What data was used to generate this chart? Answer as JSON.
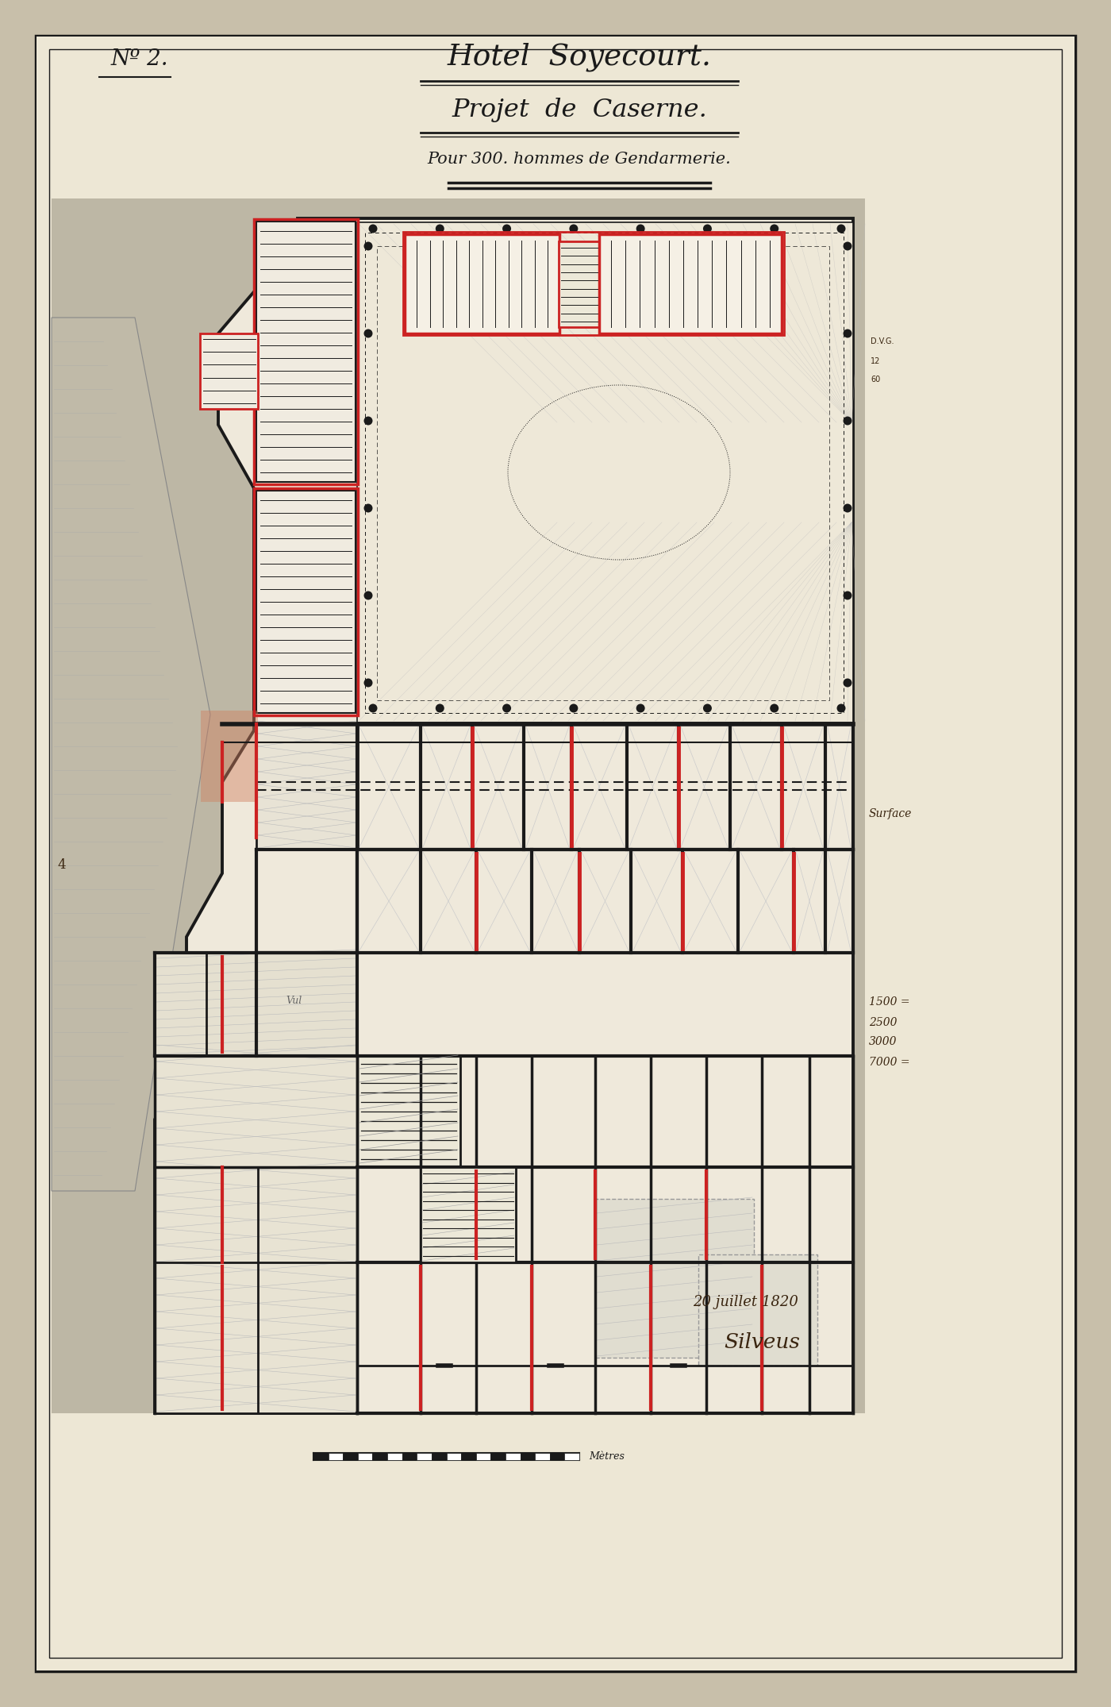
{
  "bg_outer": "#c8bfaa",
  "bg_paper": "#e8e2d0",
  "title_line1": "Hotel  Soyecourt.",
  "title_line2": "Projet  de  Caserne.",
  "title_line3": "Pour 300. hommes de Gendarmerie.",
  "label_no": "Nº 2.",
  "date_text": "20 juillet 1820",
  "signature": "Silveus",
  "red_color": "#cc2222",
  "black_color": "#1a1a1a",
  "dark_brown": "#3a2510",
  "gray_color": "#888880",
  "plan_bg": "#efe9db",
  "court_bg": "#ebe5d5",
  "note_text": "1500 =\n2500\n3000\n7000 =",
  "surface_label": "Surface"
}
